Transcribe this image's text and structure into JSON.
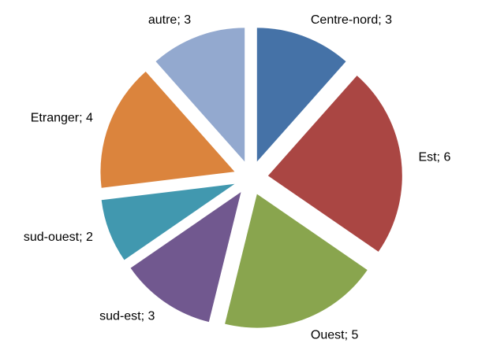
{
  "chart_data": {
    "type": "pie",
    "values": [
      3,
      6,
      5,
      3,
      2,
      4,
      3
    ],
    "value_labels": [
      "Centre-nord; 3",
      "Est; 6",
      "Ouest; 5",
      "sud-est; 3",
      "sud-ouest; 2",
      "Etranger; 4",
      "autre; 3"
    ],
    "colors": [
      "#4572a7",
      "#aa4643",
      "#89a54e",
      "#71588f",
      "#4198af",
      "#db843d",
      "#93a9cf"
    ]
  }
}
